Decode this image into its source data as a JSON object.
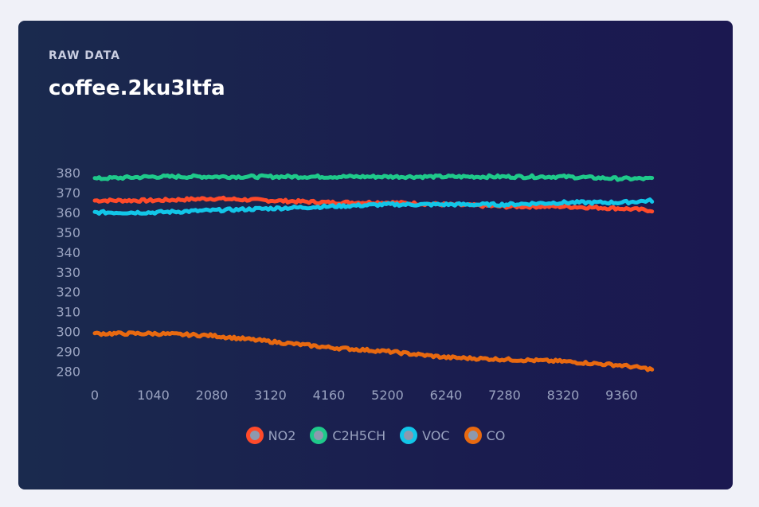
{
  "card": {
    "eyebrow": "RAW DATA",
    "title": "coffee.2ku3ltfa"
  },
  "chart_data": {
    "type": "line",
    "xlim": [
      0,
      10400
    ],
    "ylim": [
      275,
      382
    ],
    "x_ticks": [
      0,
      1040,
      2080,
      3120,
      4160,
      5200,
      6240,
      7280,
      8320,
      9360
    ],
    "y_ticks": [
      280,
      290,
      300,
      310,
      320,
      330,
      340,
      350,
      360,
      370,
      380
    ],
    "grid": false,
    "legend": "bottom",
    "x": [
      0,
      1040,
      2080,
      3120,
      4160,
      5200,
      6240,
      7280,
      8320,
      9360,
      9900
    ],
    "series": [
      {
        "name": "NO2",
        "color": "#ff4a2a",
        "values": [
          366,
          366,
          367,
          366,
          365,
          365,
          364,
          363,
          363,
          362,
          361
        ]
      },
      {
        "name": "C2H5CH",
        "color": "#1fc98a",
        "values": [
          377,
          378,
          378,
          378,
          378,
          378,
          378,
          378,
          378,
          377,
          377
        ]
      },
      {
        "name": "VOC",
        "color": "#12c6e8",
        "values": [
          360,
          360,
          361,
          362,
          363,
          364,
          364,
          364,
          365,
          365,
          366
        ]
      },
      {
        "name": "CO",
        "color": "#e86910",
        "values": [
          299,
          299,
          298,
          295,
          292,
          290,
          287,
          286,
          285,
          283,
          281
        ]
      }
    ]
  }
}
